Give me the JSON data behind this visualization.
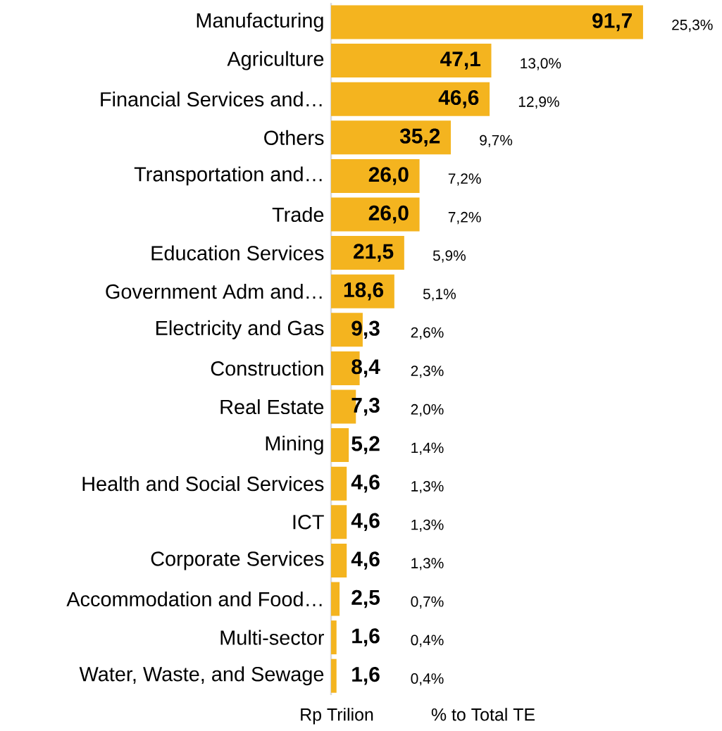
{
  "chart_data": {
    "type": "bar",
    "orientation": "horizontal",
    "color": "#f4b41f",
    "categories": [
      "Manufacturing",
      "Agriculture",
      "Financial Services and…",
      "Others",
      "Transportation and…",
      "Trade",
      "Education Services",
      "Government Adm and…",
      "Electricity and Gas",
      "Construction",
      "Real Estate",
      "Mining",
      "Health and Social Services",
      "ICT",
      "Corporate Services",
      "Accommodation and Food…",
      "Multi-sector",
      "Water, Waste, and Sewage"
    ],
    "values": [
      91.7,
      47.1,
      46.6,
      35.2,
      26.0,
      26.0,
      21.5,
      18.6,
      9.3,
      8.4,
      7.3,
      5.2,
      4.6,
      4.6,
      4.6,
      2.5,
      1.6,
      1.6
    ],
    "value_labels": [
      "91,7",
      "47,1",
      "46,6",
      "35,2",
      "26,0",
      "26,0",
      "21,5",
      "18,6",
      "9,3",
      "8,4",
      "7,3",
      "5,2",
      "4,6",
      "4,6",
      "4,6",
      "2,5",
      "1,6",
      "1,6"
    ],
    "xlabel": "Rp Trilion",
    "annotations": [
      "25,3%",
      "13,0%",
      "12,9%",
      "9,7%",
      "7,2%",
      "7,2%",
      "5,9%",
      "5,1%",
      "2,6%",
      "2,3%",
      "2,0%",
      "1,4%",
      "1,3%",
      "1,3%",
      "1,3%",
      "0,7%",
      "0,4%",
      "0,4%",
      "% to Total TE"
    ],
    "grid": false
  }
}
